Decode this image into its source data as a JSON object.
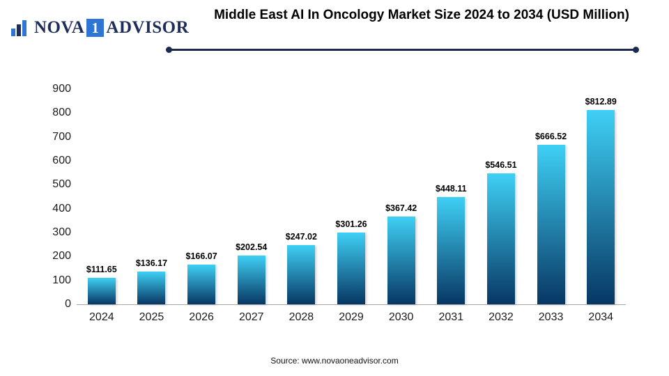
{
  "logo": {
    "nova": "NOVA",
    "one": "1",
    "advisor": "ADVISOR"
  },
  "header": {
    "title": "Middle East AI In Oncology Market Size 2024 to 2034 (USD Million)"
  },
  "footer": {
    "source": "Source: www.novaoneadvisor.com"
  },
  "chart_data": {
    "type": "bar",
    "title": "Middle East AI In Oncology Market Size 2024 to 2034 (USD Million)",
    "categories": [
      "2024",
      "2025",
      "2026",
      "2027",
      "2028",
      "2029",
      "2030",
      "2031",
      "2032",
      "2033",
      "2034"
    ],
    "values": [
      111.65,
      136.17,
      166.07,
      202.54,
      247.02,
      301.26,
      367.42,
      448.11,
      546.51,
      666.52,
      812.89
    ],
    "value_labels": [
      "$111.65",
      "$136.17",
      "$166.07",
      "$202.54",
      "$247.02",
      "$301.26",
      "$367.42",
      "$448.11",
      "$546.51",
      "$666.52",
      "$812.89"
    ],
    "ylim": [
      0,
      900
    ],
    "yticks": [
      0,
      100,
      200,
      300,
      400,
      500,
      600,
      700,
      800,
      900
    ],
    "grid": false,
    "legend": "none",
    "colors": {
      "bar_gradient_top": "#3fd0f5",
      "bar_gradient_bottom": "#073763",
      "divider": "#1c2951",
      "logo_navy": "#1e2d5a",
      "logo_blue": "#2e75d4"
    }
  }
}
